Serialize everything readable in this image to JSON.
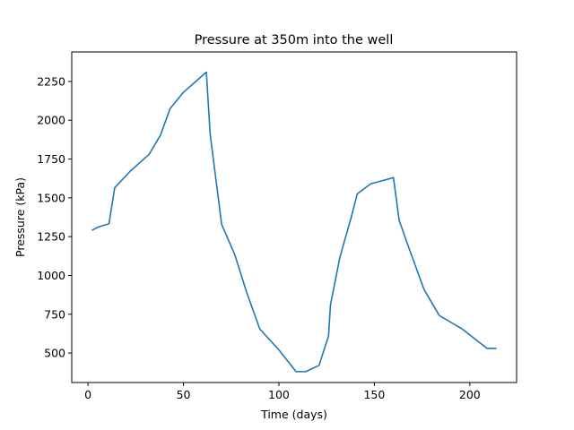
{
  "chart_data": {
    "type": "line",
    "title": "Pressure at 350m into the well",
    "xlabel": "Time (days)",
    "ylabel": "Pressure (kPa)",
    "xlim": [
      -8.5,
      224.5
    ],
    "ylim": [
      310,
      2440
    ],
    "grid": false,
    "xticks": [
      0,
      50,
      100,
      150,
      200
    ],
    "yticks": [
      500,
      750,
      1000,
      1250,
      1500,
      1750,
      2000,
      2250
    ],
    "xtick_labels": [
      "0",
      "50",
      "100",
      "150",
      "200"
    ],
    "ytick_labels": [
      "500",
      "750",
      "1000",
      "1250",
      "1500",
      "1750",
      "2000",
      "2250"
    ],
    "series": [
      {
        "name": "Pressure",
        "color": "#1f77b4",
        "x": [
          2,
          5,
          11,
          14,
          22,
          32,
          38,
          43,
          50,
          62,
          64,
          67,
          70,
          77,
          83,
          90,
          100,
          109,
          114,
          121,
          126,
          127,
          132,
          138,
          141,
          148,
          160,
          163,
          168,
          176,
          184,
          196,
          209,
          214
        ],
        "y": [
          1290,
          1310,
          1333,
          1565,
          1670,
          1780,
          1905,
          2075,
          2180,
          2310,
          1910,
          1620,
          1330,
          1130,
          895,
          655,
          520,
          380,
          380,
          420,
          610,
          810,
          1120,
          1380,
          1525,
          1590,
          1630,
          1355,
          1180,
          910,
          742,
          655,
          530,
          530
        ]
      }
    ]
  }
}
